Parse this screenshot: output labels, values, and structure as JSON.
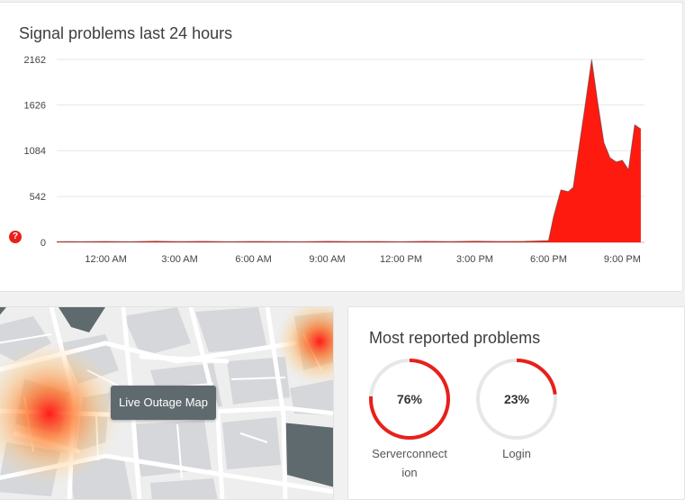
{
  "chart": {
    "title": "Signal problems last 24 hours",
    "help_icon": "question-icon"
  },
  "chart_data": {
    "type": "area",
    "title": "Signal problems last 24 hours",
    "xlabel": "",
    "ylabel": "",
    "y_ticks": [
      0,
      542,
      1084,
      1626,
      2162
    ],
    "ylim": [
      0,
      2162
    ],
    "x_ticks": [
      "12:00 AM",
      "3:00 AM",
      "6:00 AM",
      "9:00 AM",
      "12:00 PM",
      "3:00 PM",
      "6:00 PM",
      "9:00 PM"
    ],
    "x_tick_hours": [
      24,
      27,
      30,
      33,
      36,
      39,
      42,
      45
    ],
    "xlim_hours": [
      22,
      45.9
    ],
    "grid": true,
    "series": [
      {
        "color": "#ff1a0f",
        "x_hours": [
          22.0,
          22.5,
          23.0,
          24.0,
          25.0,
          26.0,
          27.0,
          28.0,
          29.0,
          30.0,
          31.0,
          32.0,
          33.0,
          34.0,
          35.0,
          36.0,
          37.0,
          38.0,
          39.0,
          40.0,
          41.0,
          42.0,
          42.2,
          42.5,
          42.8,
          43.0,
          43.25,
          43.5,
          43.75,
          44.0,
          44.25,
          44.5,
          44.75,
          45.0,
          45.25,
          45.5,
          45.75
        ],
        "y": [
          8,
          10,
          9,
          11,
          9,
          13,
          10,
          12,
          9,
          11,
          10,
          9,
          12,
          10,
          11,
          9,
          12,
          10,
          13,
          11,
          12,
          20,
          300,
          620,
          600,
          650,
          1150,
          1640,
          2162,
          1650,
          1180,
          1000,
          950,
          970,
          860,
          1390,
          1340
        ]
      }
    ]
  },
  "map": {
    "button_label": "Live Outage Map"
  },
  "problems": {
    "title": "Most reported problems",
    "accent_color": "#e8201b",
    "items": [
      {
        "percent_label": "76%",
        "percent": 76,
        "label_line1": "Serverconnect",
        "label_line2": "ion"
      },
      {
        "percent_label": "23%",
        "percent": 23,
        "label_line1": "Login",
        "label_line2": ""
      }
    ]
  }
}
